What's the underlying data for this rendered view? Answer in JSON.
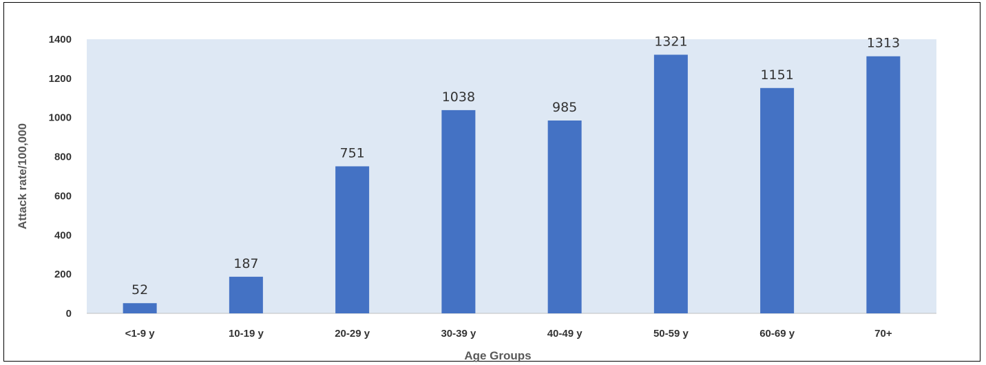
{
  "chart_data": {
    "type": "bar",
    "categories": [
      "<1-9 y",
      "10-19 y",
      "20-29 y",
      "30-39 y",
      "40-49 y",
      "50-59 y",
      "60-69 y",
      "70+"
    ],
    "values": [
      52,
      187,
      751,
      1038,
      985,
      1321,
      1151,
      1313
    ],
    "data_labels": [
      "52",
      "187",
      "751",
      "1038",
      "985",
      "1321",
      "1151",
      "1313"
    ],
    "title": "",
    "xlabel": "Age Groups",
    "ylabel": "Attack rate/100,000",
    "ylim": [
      0,
      1400
    ],
    "yticks": [
      0,
      200,
      400,
      600,
      800,
      1000,
      1200,
      1400
    ],
    "ytick_labels": [
      "0",
      "200",
      "400",
      "600",
      "800",
      "1000",
      "1200",
      "1400"
    ],
    "grid": false,
    "legend": "none",
    "colors": {
      "bar": "#4472C4",
      "plot_background": "#DEE8F4",
      "frame": "#000000",
      "text": "#333333",
      "axis_title": "#595959"
    }
  }
}
